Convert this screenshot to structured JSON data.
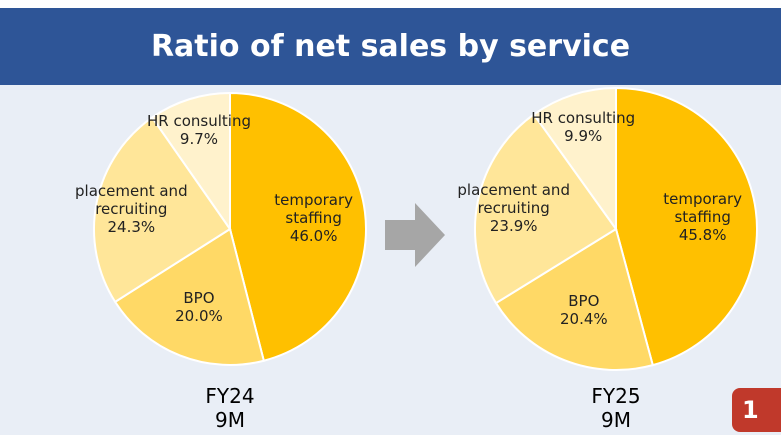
{
  "title": "Ratio of net sales by service",
  "page_number": "1",
  "chart_data": [
    {
      "type": "pie",
      "title": "FY24 9M",
      "categories": [
        "temporary staffing",
        "BPO",
        "placement and recruiting",
        "HR consulting"
      ],
      "values": [
        46.0,
        20.0,
        24.3,
        9.7
      ],
      "value_labels": [
        "46.0%",
        "20.0%",
        "24.3%",
        "9.7%"
      ],
      "colors": [
        "#ffc000",
        "#ffd966",
        "#ffe699",
        "#fff2cc"
      ]
    },
    {
      "type": "pie",
      "title": "FY25 9M",
      "categories": [
        "temporary staffing",
        "BPO",
        "placement and recruiting",
        "HR consulting"
      ],
      "values": [
        45.8,
        20.4,
        23.9,
        9.9
      ],
      "value_labels": [
        "45.8%",
        "20.4%",
        "23.9%",
        "9.9%"
      ],
      "colors": [
        "#ffc000",
        "#ffd966",
        "#ffe699",
        "#fff2cc"
      ]
    }
  ]
}
